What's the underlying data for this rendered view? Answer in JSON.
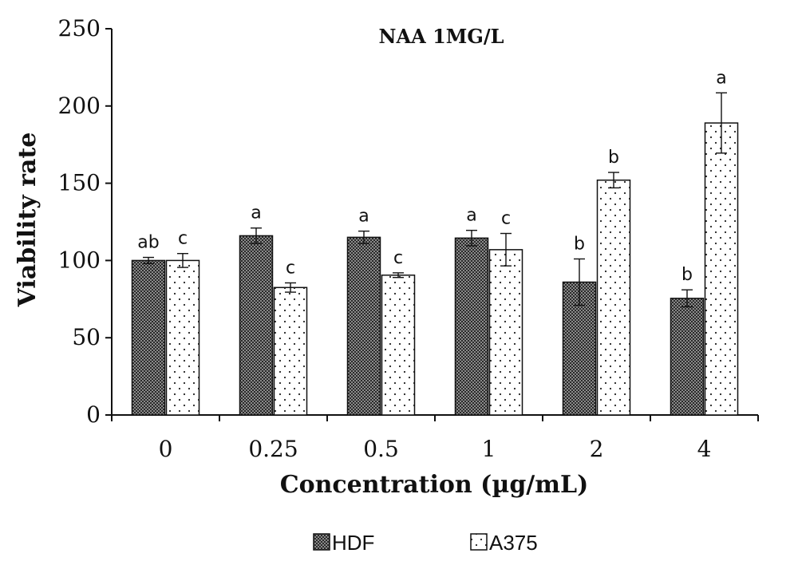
{
  "chart_data": {
    "type": "bar",
    "title": "NAA 1MG/L",
    "xlabel": "Concentration (µg/mL)",
    "ylabel": "Viability rate",
    "ylim": [
      0,
      250
    ],
    "yticks": [
      0,
      50,
      100,
      150,
      200,
      250
    ],
    "categories": [
      "0",
      "0.25",
      "0.5",
      "1",
      "2",
      "4"
    ],
    "grid": false,
    "legend_position": "bottom",
    "series": [
      {
        "name": "HDF",
        "values": [
          100,
          116,
          115,
          114.5,
          86,
          75.5
        ],
        "errors": [
          2,
          5,
          4,
          5,
          15,
          5.5
        ],
        "significance": [
          "ab",
          "a",
          "a",
          "a",
          "b",
          "b"
        ],
        "fill": "crosshatch",
        "color": "#3a3a3a"
      },
      {
        "name": "A375",
        "values": [
          100,
          82.5,
          90.5,
          107,
          152,
          189
        ],
        "errors": [
          4.5,
          3,
          1.5,
          10.5,
          5,
          19.5
        ],
        "significance": [
          "c",
          "c",
          "c",
          "c",
          "b",
          "a"
        ],
        "fill": "dots",
        "color": "#ffffff"
      }
    ]
  }
}
